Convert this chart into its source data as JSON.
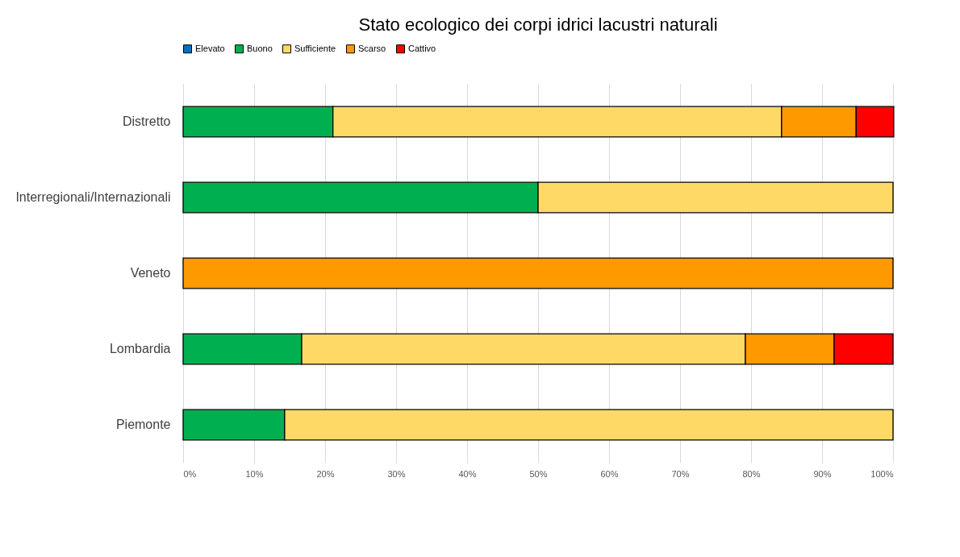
{
  "chart_data": {
    "type": "bar",
    "orientation": "horizontal",
    "stacked": true,
    "title": "Stato ecologico dei corpi idrici lacustri naturali",
    "categories": [
      "Distretto",
      "Interregionali/Internazionali",
      "Veneto",
      "Lombardia",
      "Piemonte"
    ],
    "series": [
      {
        "name": "Elevato",
        "color": "#0070c0",
        "values": [
          0,
          0,
          0,
          0,
          0
        ]
      },
      {
        "name": "Buono",
        "color": "#00b050",
        "values": [
          21.1,
          50,
          0,
          16.7,
          14.3
        ]
      },
      {
        "name": "Sufficiente",
        "color": "#ffd966",
        "values": [
          63.2,
          50,
          0,
          62.5,
          85.7
        ]
      },
      {
        "name": "Scarso",
        "color": "#ff9900",
        "values": [
          10.5,
          0,
          100,
          12.5,
          0
        ]
      },
      {
        "name": "Cattivo",
        "color": "#ff0000",
        "values": [
          5.3,
          0,
          0,
          8.3,
          0
        ]
      }
    ],
    "xlim": [
      0,
      100
    ],
    "xticks": [
      {
        "value": 0,
        "label": "0%"
      },
      {
        "value": 10,
        "label": "10%"
      },
      {
        "value": 20,
        "label": "20%"
      },
      {
        "value": 30,
        "label": "30%"
      },
      {
        "value": 40,
        "label": "40%"
      },
      {
        "value": 50,
        "label": "50%"
      },
      {
        "value": 60,
        "label": "60%"
      },
      {
        "value": 70,
        "label": "70%"
      },
      {
        "value": 80,
        "label": "80%"
      },
      {
        "value": 90,
        "label": "90%"
      },
      {
        "value": 100,
        "label": "100%"
      }
    ],
    "grid": "x",
    "legend": "top"
  }
}
